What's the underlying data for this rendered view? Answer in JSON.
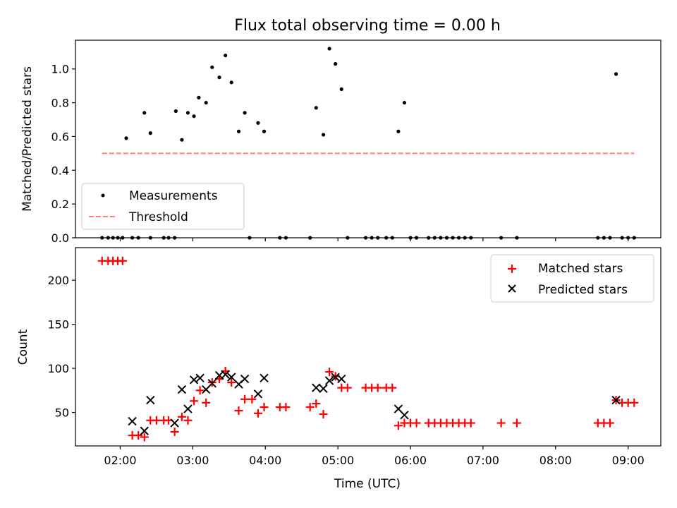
{
  "chart_data": [
    {
      "type": "scatter",
      "title": "Flux total observing time = 0.00 h",
      "xlabel": "",
      "ylabel": "Matched/Predicted stars",
      "ylim": [
        0,
        1.17
      ],
      "yticks": [
        "0.0",
        "0.2",
        "0.4",
        "0.6",
        "0.8",
        "1.0"
      ],
      "legend_position": "lower-left",
      "series": [
        {
          "name": "Measurements",
          "color": "#000000",
          "marker": "dot",
          "points": [
            [
              "01:45",
              0
            ],
            [
              "01:50",
              0
            ],
            [
              "01:54",
              0
            ],
            [
              "01:58",
              0
            ],
            [
              "02:02",
              0
            ],
            [
              "02:10",
              0
            ],
            [
              "02:15",
              0
            ],
            [
              "02:25",
              0
            ],
            [
              "02:36",
              0
            ],
            [
              "02:40",
              0
            ],
            [
              "02:45",
              0
            ],
            [
              "02:05",
              0.59
            ],
            [
              "02:20",
              0.74
            ],
            [
              "02:25",
              0.62
            ],
            [
              "02:46",
              0.75
            ],
            [
              "02:51",
              0.58
            ],
            [
              "02:56",
              0.74
            ],
            [
              "03:01",
              0.72
            ],
            [
              "03:05",
              0.83
            ],
            [
              "03:11",
              0.8
            ],
            [
              "03:16",
              1.01
            ],
            [
              "03:22",
              0.95
            ],
            [
              "03:27",
              1.08
            ],
            [
              "03:32",
              0.92
            ],
            [
              "03:38",
              0.63
            ],
            [
              "03:43",
              0.74
            ],
            [
              "03:47",
              0
            ],
            [
              "03:54",
              0.68
            ],
            [
              "03:59",
              0.63
            ],
            [
              "04:12",
              0
            ],
            [
              "04:17",
              0
            ],
            [
              "04:37",
              0
            ],
            [
              "04:42",
              0.77
            ],
            [
              "04:48",
              0.61
            ],
            [
              "04:53",
              1.12
            ],
            [
              "04:58",
              1.03
            ],
            [
              "05:03",
              0.88
            ],
            [
              "05:08",
              0
            ],
            [
              "05:23",
              0
            ],
            [
              "05:28",
              0
            ],
            [
              "05:33",
              0
            ],
            [
              "05:40",
              0
            ],
            [
              "05:45",
              0
            ],
            [
              "05:50",
              0.63
            ],
            [
              "05:55",
              0.8
            ],
            [
              "06:00",
              0
            ],
            [
              "06:05",
              0
            ],
            [
              "06:15",
              0
            ],
            [
              "06:20",
              0
            ],
            [
              "06:25",
              0
            ],
            [
              "06:30",
              0
            ],
            [
              "06:35",
              0
            ],
            [
              "06:40",
              0
            ],
            [
              "06:45",
              0
            ],
            [
              "06:50",
              0
            ],
            [
              "07:15",
              0
            ],
            [
              "07:28",
              0
            ],
            [
              "08:35",
              0
            ],
            [
              "08:40",
              0
            ],
            [
              "08:45",
              0
            ],
            [
              "08:50",
              0.97
            ],
            [
              "08:55",
              0
            ],
            [
              "09:00",
              0
            ],
            [
              "09:05",
              0
            ]
          ]
        },
        {
          "name": "Threshold",
          "color": "#ff7f7f",
          "style": "dashed",
          "points": [
            [
              "01:45",
              0.5
            ],
            [
              "09:05",
              0.5
            ]
          ]
        }
      ]
    },
    {
      "type": "scatter",
      "title": "",
      "xlabel": "Time (UTC)",
      "ylabel": "Count",
      "ylim": [
        12,
        237
      ],
      "yticks": [
        "50",
        "100",
        "150",
        "200"
      ],
      "xticks": [
        "02:00",
        "03:00",
        "04:00",
        "05:00",
        "06:00",
        "07:00",
        "08:00",
        "09:00"
      ],
      "xlim": [
        "01:23",
        "09:27"
      ],
      "legend_position": "upper-right",
      "series": [
        {
          "name": "Matched stars",
          "color": "#ff0000",
          "marker": "plus",
          "points": [
            [
              "01:45",
              222
            ],
            [
              "01:50",
              222
            ],
            [
              "01:54",
              222
            ],
            [
              "01:58",
              222
            ],
            [
              "02:02",
              222
            ],
            [
              "02:10",
              24
            ],
            [
              "02:15",
              24
            ],
            [
              "02:20",
              22
            ],
            [
              "02:25",
              41
            ],
            [
              "02:30",
              41
            ],
            [
              "02:36",
              41
            ],
            [
              "02:40",
              41
            ],
            [
              "02:45",
              28
            ],
            [
              "02:51",
              45
            ],
            [
              "02:56",
              41
            ],
            [
              "03:01",
              63
            ],
            [
              "03:06",
              75
            ],
            [
              "03:11",
              61
            ],
            [
              "03:16",
              84
            ],
            [
              "03:22",
              88
            ],
            [
              "03:27",
              97
            ],
            [
              "03:32",
              84
            ],
            [
              "03:38",
              52
            ],
            [
              "03:43",
              65
            ],
            [
              "03:49",
              65
            ],
            [
              "03:54",
              49
            ],
            [
              "03:59",
              56
            ],
            [
              "04:12",
              56
            ],
            [
              "04:17",
              56
            ],
            [
              "04:37",
              56
            ],
            [
              "04:42",
              60
            ],
            [
              "04:48",
              48
            ],
            [
              "04:53",
              96
            ],
            [
              "04:58",
              91
            ],
            [
              "05:03",
              78
            ],
            [
              "05:08",
              78
            ],
            [
              "05:23",
              78
            ],
            [
              "05:28",
              78
            ],
            [
              "05:33",
              78
            ],
            [
              "05:40",
              78
            ],
            [
              "05:45",
              78
            ],
            [
              "05:50",
              35
            ],
            [
              "05:55",
              38
            ],
            [
              "06:00",
              38
            ],
            [
              "06:05",
              38
            ],
            [
              "06:15",
              38
            ],
            [
              "06:20",
              38
            ],
            [
              "06:25",
              38
            ],
            [
              "06:30",
              38
            ],
            [
              "06:35",
              38
            ],
            [
              "06:40",
              38
            ],
            [
              "06:45",
              38
            ],
            [
              "06:50",
              38
            ],
            [
              "07:15",
              38
            ],
            [
              "07:28",
              38
            ],
            [
              "08:35",
              38
            ],
            [
              "08:40",
              38
            ],
            [
              "08:45",
              38
            ],
            [
              "08:50",
              64
            ],
            [
              "08:55",
              61
            ],
            [
              "09:00",
              61
            ],
            [
              "09:05",
              61
            ]
          ]
        },
        {
          "name": "Predicted stars",
          "color": "#000000",
          "marker": "x",
          "points": [
            [
              "02:10",
              40
            ],
            [
              "02:20",
              29
            ],
            [
              "02:25",
              64
            ],
            [
              "02:45",
              38
            ],
            [
              "02:51",
              76
            ],
            [
              "02:56",
              54
            ],
            [
              "03:01",
              87
            ],
            [
              "03:06",
              89
            ],
            [
              "03:11",
              76
            ],
            [
              "03:16",
              83
            ],
            [
              "03:22",
              92
            ],
            [
              "03:27",
              93
            ],
            [
              "03:32",
              90
            ],
            [
              "03:38",
              82
            ],
            [
              "03:43",
              88
            ],
            [
              "03:54",
              71
            ],
            [
              "03:59",
              89
            ],
            [
              "04:42",
              78
            ],
            [
              "04:48",
              77
            ],
            [
              "04:53",
              86
            ],
            [
              "04:58",
              90
            ],
            [
              "05:03",
              88
            ],
            [
              "05:50",
              54
            ],
            [
              "05:55",
              47
            ],
            [
              "08:50",
              64
            ]
          ]
        }
      ]
    }
  ]
}
